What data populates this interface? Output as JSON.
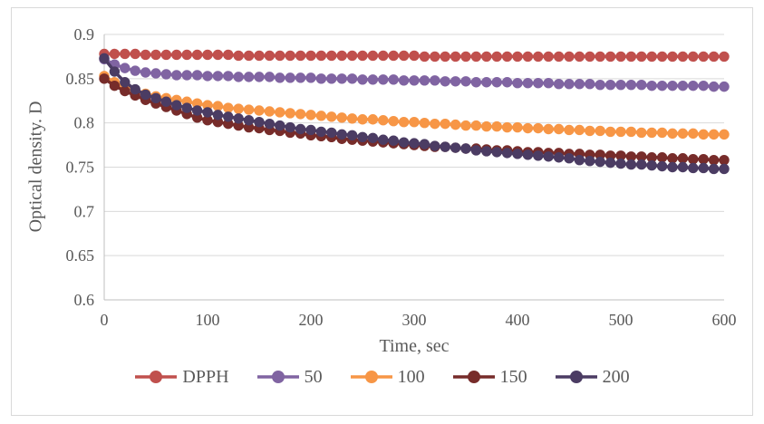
{
  "figure": {
    "background": "#FFFFFF",
    "border_color": "#D9D9D9",
    "text_color": "#595959",
    "gridline_color": "#D9D9D9",
    "axis_line_color": "#BFBFBF"
  },
  "chart_data": {
    "type": "line",
    "title": "",
    "xlabel": "Time, sec",
    "ylabel": "Optical density. D",
    "xlim": [
      0,
      600
    ],
    "ylim": [
      0.6,
      0.9
    ],
    "x_ticks": [
      "0",
      "100",
      "200",
      "300",
      "400",
      "500",
      "600"
    ],
    "x_tick_values": [
      0,
      100,
      200,
      300,
      400,
      500,
      600
    ],
    "y_ticks": [
      "0.9",
      "0.85",
      "0.8",
      "0.75",
      "0.7",
      "0.65",
      "0.6"
    ],
    "y_tick_values": [
      0.9,
      0.85,
      0.8,
      0.75,
      0.7,
      0.65,
      0.6
    ],
    "grid": "horizontal",
    "legend_position": "bottom",
    "marker": "circle",
    "x": [
      0,
      10,
      20,
      30,
      40,
      50,
      60,
      70,
      80,
      90,
      100,
      110,
      120,
      130,
      140,
      150,
      160,
      170,
      180,
      190,
      200,
      210,
      220,
      230,
      240,
      250,
      260,
      270,
      280,
      290,
      300,
      310,
      320,
      330,
      340,
      350,
      360,
      370,
      380,
      390,
      400,
      410,
      420,
      430,
      440,
      450,
      460,
      470,
      480,
      490,
      500,
      510,
      520,
      530,
      540,
      550,
      560,
      570,
      580,
      590,
      600
    ],
    "series": [
      {
        "name": "DPPH",
        "color": "#C0504D",
        "values": [
          0.878,
          0.878,
          0.878,
          0.878,
          0.877,
          0.877,
          0.877,
          0.877,
          0.877,
          0.877,
          0.877,
          0.877,
          0.877,
          0.876,
          0.876,
          0.876,
          0.876,
          0.876,
          0.876,
          0.876,
          0.876,
          0.876,
          0.876,
          0.876,
          0.876,
          0.876,
          0.876,
          0.876,
          0.876,
          0.876,
          0.876,
          0.875,
          0.875,
          0.875,
          0.875,
          0.875,
          0.875,
          0.875,
          0.875,
          0.875,
          0.875,
          0.875,
          0.875,
          0.875,
          0.875,
          0.875,
          0.875,
          0.875,
          0.875,
          0.875,
          0.875,
          0.875,
          0.875,
          0.875,
          0.875,
          0.875,
          0.875,
          0.875,
          0.875,
          0.875,
          0.875
        ]
      },
      {
        "name": "50",
        "color": "#8064A2",
        "values": [
          0.872,
          0.866,
          0.862,
          0.859,
          0.857,
          0.856,
          0.855,
          0.854,
          0.854,
          0.854,
          0.853,
          0.853,
          0.853,
          0.852,
          0.852,
          0.852,
          0.852,
          0.851,
          0.851,
          0.851,
          0.851,
          0.85,
          0.85,
          0.85,
          0.85,
          0.849,
          0.849,
          0.849,
          0.849,
          0.848,
          0.848,
          0.848,
          0.848,
          0.847,
          0.847,
          0.847,
          0.846,
          0.846,
          0.846,
          0.846,
          0.845,
          0.845,
          0.845,
          0.845,
          0.844,
          0.844,
          0.844,
          0.844,
          0.843,
          0.843,
          0.843,
          0.843,
          0.843,
          0.842,
          0.842,
          0.842,
          0.842,
          0.842,
          0.842,
          0.841,
          0.841
        ]
      },
      {
        "name": "100",
        "color": "#F79646",
        "values": [
          0.853,
          0.846,
          0.841,
          0.837,
          0.833,
          0.83,
          0.828,
          0.826,
          0.824,
          0.822,
          0.82,
          0.819,
          0.817,
          0.816,
          0.815,
          0.814,
          0.813,
          0.812,
          0.811,
          0.81,
          0.809,
          0.808,
          0.807,
          0.806,
          0.805,
          0.804,
          0.804,
          0.803,
          0.802,
          0.801,
          0.801,
          0.8,
          0.799,
          0.799,
          0.798,
          0.797,
          0.797,
          0.796,
          0.796,
          0.795,
          0.795,
          0.794,
          0.794,
          0.793,
          0.793,
          0.792,
          0.792,
          0.791,
          0.791,
          0.79,
          0.79,
          0.79,
          0.789,
          0.789,
          0.789,
          0.788,
          0.788,
          0.788,
          0.787,
          0.787,
          0.787
        ]
      },
      {
        "name": "150",
        "color": "#772C2A",
        "values": [
          0.85,
          0.842,
          0.836,
          0.831,
          0.826,
          0.822,
          0.818,
          0.814,
          0.81,
          0.806,
          0.803,
          0.801,
          0.799,
          0.797,
          0.795,
          0.794,
          0.792,
          0.791,
          0.789,
          0.788,
          0.786,
          0.785,
          0.784,
          0.782,
          0.781,
          0.78,
          0.779,
          0.778,
          0.777,
          0.776,
          0.775,
          0.774,
          0.773,
          0.773,
          0.772,
          0.771,
          0.771,
          0.77,
          0.769,
          0.769,
          0.768,
          0.767,
          0.767,
          0.766,
          0.766,
          0.765,
          0.765,
          0.764,
          0.764,
          0.763,
          0.763,
          0.762,
          0.762,
          0.761,
          0.761,
          0.76,
          0.76,
          0.759,
          0.759,
          0.758,
          0.758
        ]
      },
      {
        "name": "200",
        "color": "#4B3C63",
        "values": [
          0.873,
          0.858,
          0.846,
          0.838,
          0.832,
          0.828,
          0.824,
          0.82,
          0.817,
          0.814,
          0.812,
          0.809,
          0.807,
          0.805,
          0.803,
          0.801,
          0.799,
          0.797,
          0.795,
          0.793,
          0.792,
          0.79,
          0.789,
          0.787,
          0.786,
          0.784,
          0.783,
          0.781,
          0.78,
          0.778,
          0.777,
          0.776,
          0.774,
          0.773,
          0.772,
          0.771,
          0.769,
          0.768,
          0.767,
          0.766,
          0.765,
          0.764,
          0.763,
          0.762,
          0.761,
          0.76,
          0.758,
          0.757,
          0.756,
          0.755,
          0.754,
          0.753,
          0.753,
          0.752,
          0.751,
          0.75,
          0.75,
          0.749,
          0.749,
          0.748,
          0.748
        ]
      }
    ]
  }
}
